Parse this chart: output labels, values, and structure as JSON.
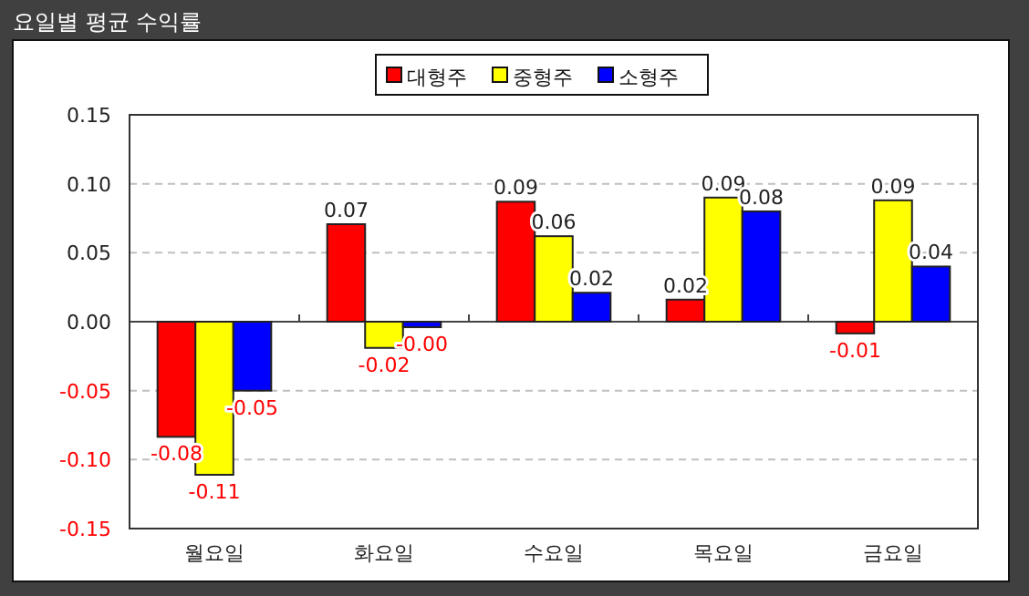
{
  "chart_data": {
    "type": "bar",
    "title": "요일별 평균 수익률",
    "categories": [
      "월요일",
      "화요일",
      "수요일",
      "목요일",
      "금요일"
    ],
    "series": [
      {
        "name": "대형주",
        "color": "#ff0000",
        "values": [
          -0.0835,
          0.0707,
          0.087,
          0.016,
          -0.0085
        ],
        "value_labels": [
          "-0.08",
          "0.07",
          "0.09",
          "0.02",
          "-0.01"
        ]
      },
      {
        "name": "중형주",
        "color": "#ffff00",
        "values": [
          -0.111,
          -0.019,
          0.062,
          0.09,
          0.088
        ],
        "value_labels": [
          "-0.11",
          "-0.02",
          "0.06",
          "0.09",
          "0.09"
        ]
      },
      {
        "name": "소형주",
        "color": "#0000ff",
        "values": [
          -0.05,
          -0.004,
          0.021,
          0.08,
          0.04
        ],
        "value_labels": [
          "-0.05",
          "-0.00",
          "0.02",
          "0.08",
          "0.04"
        ]
      }
    ],
    "ylim": [
      -0.15,
      0.15
    ],
    "yticks": [
      {
        "value": -0.15,
        "label": "-0.15"
      },
      {
        "value": -0.1,
        "label": "-0.10"
      },
      {
        "value": -0.05,
        "label": "-0.05"
      },
      {
        "value": 0,
        "label": "0.00"
      },
      {
        "value": 0.05,
        "label": "0.05"
      },
      {
        "value": 0.1,
        "label": "0.10"
      },
      {
        "value": 0.15,
        "label": "0.15"
      }
    ],
    "grid": "y",
    "legend": "top"
  }
}
